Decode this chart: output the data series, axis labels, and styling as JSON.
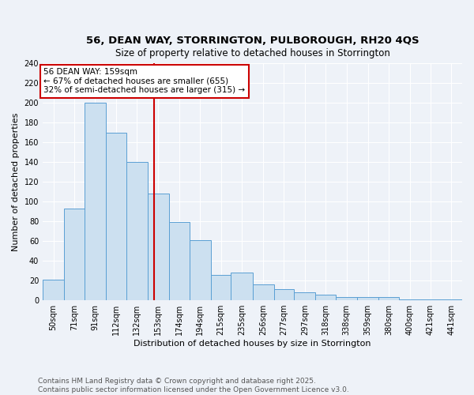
{
  "title1": "56, DEAN WAY, STORRINGTON, PULBOROUGH, RH20 4QS",
  "title2": "Size of property relative to detached houses in Storrington",
  "xlabel": "Distribution of detached houses by size in Storrington",
  "ylabel": "Number of detached properties",
  "bins": [
    50,
    71,
    91,
    112,
    132,
    153,
    174,
    194,
    215,
    235,
    256,
    277,
    297,
    318,
    338,
    359,
    380,
    400,
    421,
    441,
    462
  ],
  "counts": [
    21,
    93,
    200,
    170,
    140,
    108,
    79,
    61,
    26,
    28,
    16,
    11,
    8,
    6,
    3,
    3,
    3,
    1,
    1,
    1
  ],
  "bar_color": "#cce0f0",
  "bar_edge_color": "#5a9fd4",
  "property_size": 159,
  "vline_color": "#cc0000",
  "annotation_line1": "56 DEAN WAY: 159sqm",
  "annotation_line2": "← 67% of detached houses are smaller (655)",
  "annotation_line3": "32% of semi-detached houses are larger (315) →",
  "annotation_box_color": "#ffffff",
  "annotation_box_edge": "#cc0000",
  "footnote1": "Contains HM Land Registry data © Crown copyright and database right 2025.",
  "footnote2": "Contains public sector information licensed under the Open Government Licence v3.0.",
  "ylim": [
    0,
    240
  ],
  "yticks": [
    0,
    20,
    40,
    60,
    80,
    100,
    120,
    140,
    160,
    180,
    200,
    220,
    240
  ],
  "bg_color": "#eef2f8",
  "grid_color": "#ffffff",
  "title_fontsize": 9.5,
  "subtitle_fontsize": 8.5,
  "axis_label_fontsize": 8,
  "tick_fontsize": 7,
  "footnote_fontsize": 6.5
}
